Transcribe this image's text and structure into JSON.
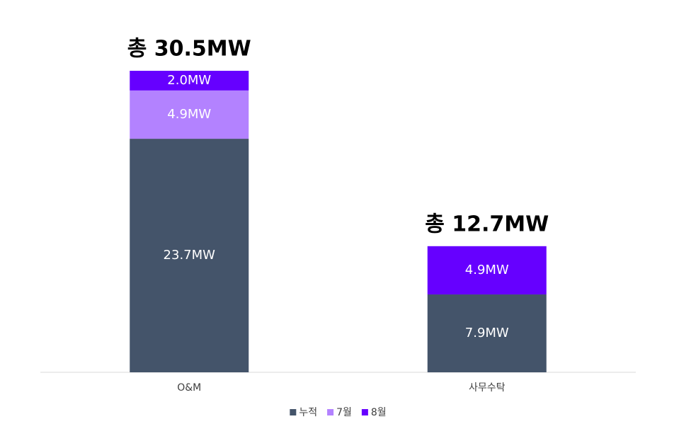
{
  "chart_data": {
    "type": "stacked_bar",
    "categories": [
      "O&M",
      "사무수탁"
    ],
    "series": [
      {
        "name": "누적",
        "color": "#44546a",
        "values": [
          23.7,
          7.9
        ],
        "value_labels": [
          "23.7MW",
          "7.9MW"
        ]
      },
      {
        "name": "7월",
        "color": "#b382ff",
        "values": [
          4.9,
          null
        ],
        "value_labels": [
          "4.9MW",
          null
        ]
      },
      {
        "name": "8월",
        "color": "#6600ff",
        "values": [
          2.0,
          4.9
        ],
        "value_labels": [
          "2.0MW",
          "4.9MW"
        ]
      }
    ],
    "total_labels": [
      "총 30.5MW",
      "총 12.7MW"
    ],
    "legend": "bottom"
  }
}
